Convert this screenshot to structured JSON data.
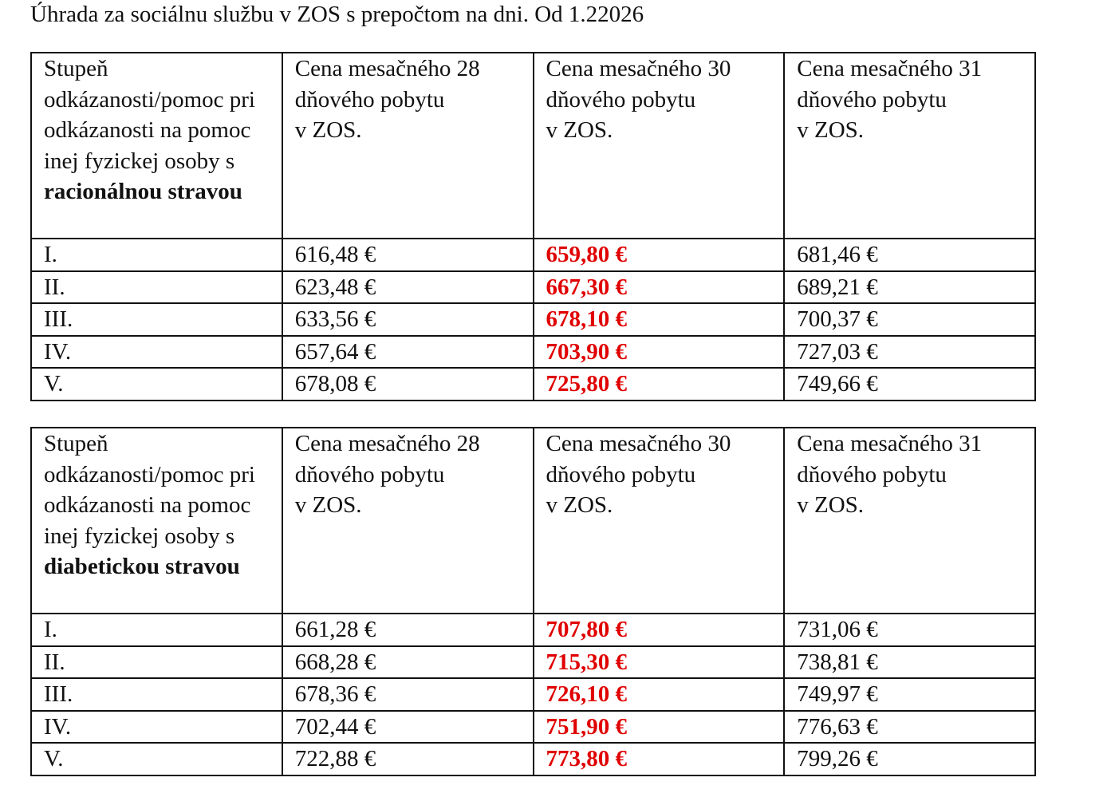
{
  "title": "Úhrada za sociálnu službu v ZOS s prepočtom na dni. Od 1.22026",
  "tables": [
    {
      "header": {
        "first_plain": "Stupeň odkázanosti/pomoc pri odkázanosti na pomoc inej fyzickej osoby s",
        "first_bold": "racionálnou stravou",
        "columns": [
          [
            "Cena mesačného 28",
            "dňového pobytu",
            "v ZOS."
          ],
          [
            "Cena mesačného 30",
            "dňového pobytu",
            "v ZOS."
          ],
          [
            "Cena mesačného 31",
            "dňového pobytu",
            "v ZOS."
          ]
        ]
      },
      "rows": [
        [
          "I.",
          "616,48 €",
          "659,80 €",
          "681,46 €"
        ],
        [
          "II.",
          "623,48 €",
          "667,30 €",
          "689,21 €"
        ],
        [
          "III.",
          "633,56 €",
          "678,10 €",
          "700,37 €"
        ],
        [
          "IV.",
          "657,64 €",
          "703,90 €",
          "727,03 €"
        ],
        [
          "V.",
          "678,08 €",
          "725,80 €",
          "749,66 €"
        ]
      ]
    },
    {
      "header": {
        "first_plain": "Stupeň odkázanosti/pomoc pri odkázanosti na pomoc inej fyzickej osoby s",
        "first_bold": "diabetickou stravou",
        "columns": [
          [
            "Cena mesačného 28",
            "dňového pobytu",
            "v ZOS."
          ],
          [
            "Cena mesačného 30",
            "dňového pobytu",
            "v ZOS."
          ],
          [
            "Cena mesačného 31",
            "dňového pobytu",
            "v ZOS."
          ]
        ]
      },
      "rows": [
        [
          "I.",
          "661,28 €",
          "707,80 €",
          "731,06 €"
        ],
        [
          "II.",
          "668,28 €",
          "715,30 €",
          "738,81 €"
        ],
        [
          "III.",
          "678,36 €",
          "726,10 €",
          "749,97 €"
        ],
        [
          "IV.",
          "702,44 €",
          "751,90 €",
          "776,63 €"
        ],
        [
          "V.",
          "722,88 €",
          "773,80 €",
          "799,26 €"
        ]
      ]
    }
  ]
}
